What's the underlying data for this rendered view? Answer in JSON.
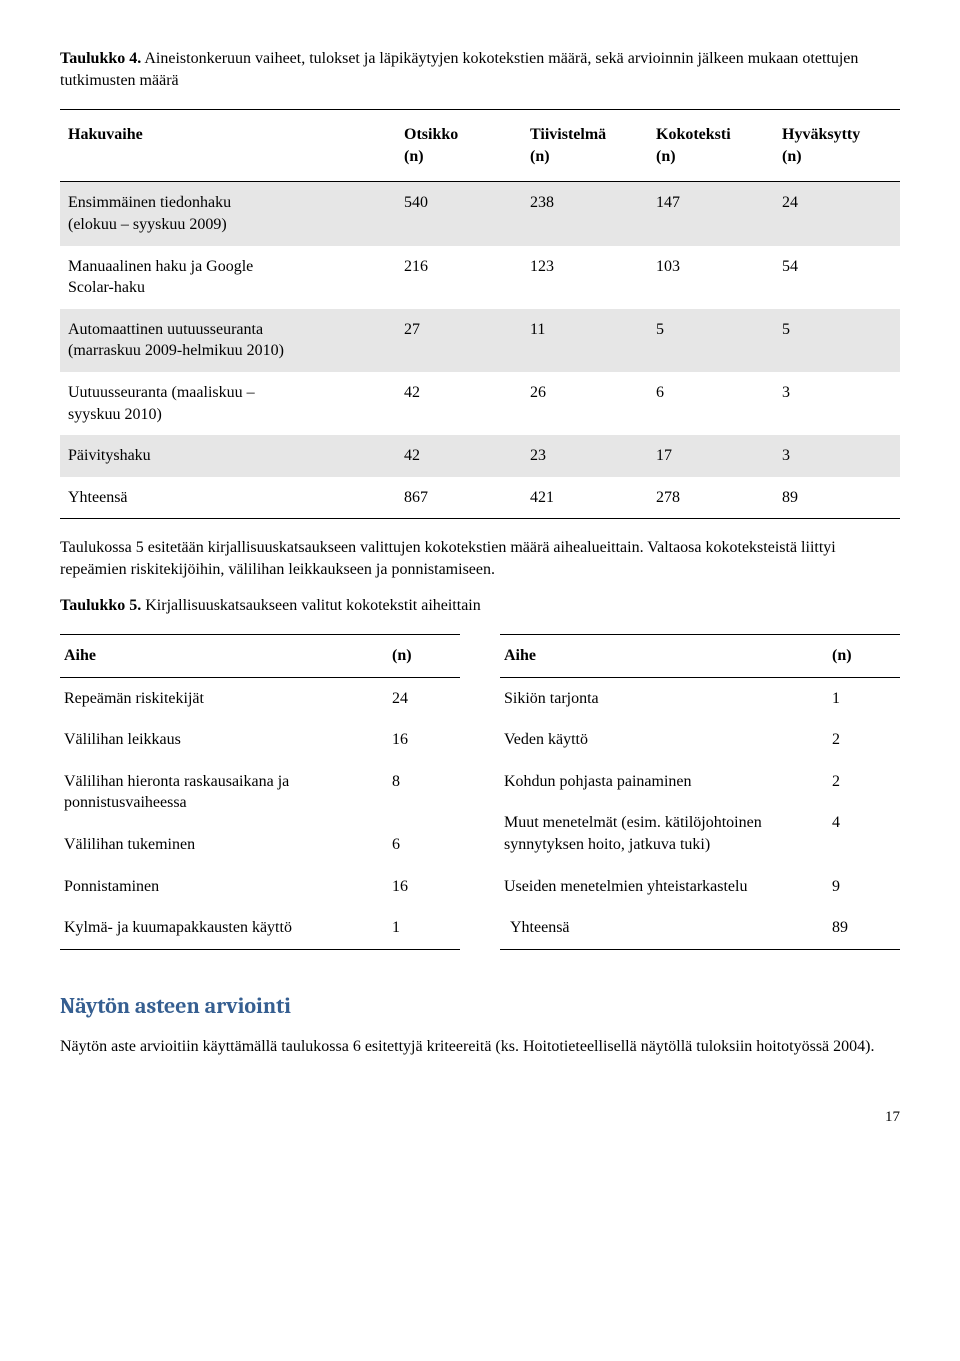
{
  "table4": {
    "caption_bold": "Taulukko 4.",
    "caption_rest": " Aineistonkeruun vaiheet, tulokset ja läpikäytyjen kokotekstien määrä, sekä arvioinnin jälkeen mukaan otettujen tutkimusten määrä",
    "headers": [
      "Hakuvaihe",
      "Otsikko\n(n)",
      "Tiivistelmä\n(n)",
      "Kokoteksti\n(n)",
      "Hyväksytty\n(n)"
    ],
    "rows": [
      {
        "label": "Ensimmäinen tiedonhaku\n(elokuu – syyskuu 2009)",
        "vals": [
          "540",
          "238",
          "147",
          "24"
        ],
        "shade": true
      },
      {
        "label": "Manuaalinen haku ja Google\nScolar-haku",
        "vals": [
          "216",
          "123",
          "103",
          "54"
        ],
        "shade": false
      },
      {
        "label": "Automaattinen uutuusseuranta\n(marraskuu 2009-helmikuu 2010)",
        "vals": [
          "27",
          "11",
          "5",
          "5"
        ],
        "shade": true
      },
      {
        "label": "Uutuusseuranta (maaliskuu –\nsyyskuu 2010)",
        "vals": [
          "42",
          "26",
          "6",
          "3"
        ],
        "shade": false
      },
      {
        "label": "Päivityshaku",
        "vals": [
          "42",
          "23",
          "17",
          "3"
        ],
        "shade": true
      },
      {
        "label": "Yhteensä",
        "vals": [
          "867",
          "421",
          "278",
          "89"
        ],
        "shade": false,
        "last": true
      }
    ]
  },
  "para1": "Taulukossa 5 esitetään kirjallisuuskatsaukseen valittujen kokotekstien määrä aihealueittain. Valtaosa kokoteksteistä liittyi repeämien riskitekijöihin, välilihan leikkaukseen ja ponnistamiseen.",
  "table5": {
    "caption_bold": "Taulukko 5.",
    "caption_rest": " Kirjallisuuskatsaukseen valitut kokotekstit aiheittain",
    "left_header": [
      "Aihe",
      "(n)"
    ],
    "left_rows": [
      {
        "a": "Repeämän riskitekijät",
        "n": "24"
      },
      {
        "a": "Välilihan leikkaus",
        "n": "16"
      },
      {
        "a": "Välilihan hieronta raskausaikana ja\nponnistusvaiheessa",
        "n": "8"
      },
      {
        "a": "Välilihan tukeminen",
        "n": "6"
      },
      {
        "a": "Ponnistaminen",
        "n": "16"
      },
      {
        "a": "Kylmä- ja kuumapakkausten käyttö",
        "n": "1",
        "last": true
      }
    ],
    "right_header": [
      "Aihe",
      "(n)"
    ],
    "right_rows": [
      {
        "a": "Sikiön tarjonta",
        "n": "1"
      },
      {
        "a": "Veden käyttö",
        "n": "2"
      },
      {
        "a": "Kohdun pohjasta painaminen",
        "n": "2"
      },
      {
        "a": "Muut menetelmät (esim. kätilöjohtoinen\nsynnytyksen hoito, jatkuva tuki)",
        "n": "4"
      },
      {
        "a": "Useiden menetelmien yhteistarkastelu",
        "n": "9"
      },
      {
        "a": "Yhteensä",
        "n": "89",
        "last": true,
        "indent": true
      }
    ]
  },
  "section_heading": "Näytön asteen arviointi",
  "para2": "Näytön aste arvioitiin käyttämällä taulukossa 6 esitettyjä kriteereitä (ks. Hoitotieteellisellä näytöllä tuloksiin hoitotyössä 2004).",
  "page_number": "17",
  "colors": {
    "heading": "#365f91",
    "shade": "#e6e6e6"
  }
}
